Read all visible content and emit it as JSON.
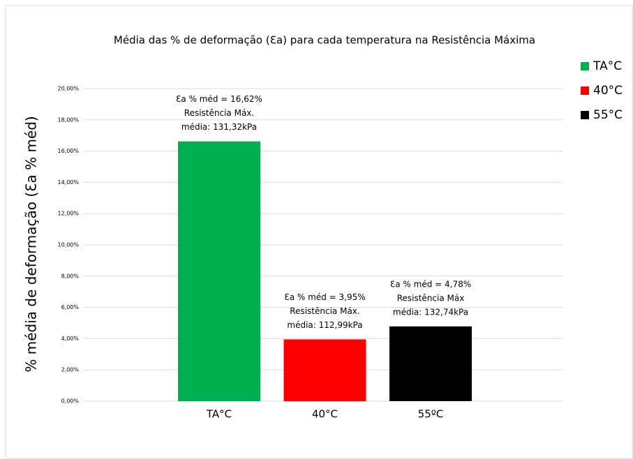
{
  "chart_data": {
    "type": "bar",
    "title": "Média das % de deformação (Ɛa) para cada temperatura na Resistência Máxima",
    "ylabel": "% média de deformação (Ɛa % méd)",
    "categories": [
      "TA°C",
      "40°C",
      "55ºC"
    ],
    "values": [
      16.62,
      3.95,
      4.78
    ],
    "colors": [
      "#00b050",
      "#ff0000",
      "#000000"
    ],
    "annotations": [
      [
        "Ɛa % méd = 16,62%",
        "Resistência Máx.",
        "média: 131,32kPa"
      ],
      [
        "Ɛa % méd = 3,95%",
        "Resistência Máx.",
        "média: 112,99kPa"
      ],
      [
        "Ɛa % méd = 4,78%",
        "Resistência Máx",
        "média: 132,74kPa"
      ]
    ],
    "legend": [
      "TA°C",
      "40°C",
      "55°C"
    ],
    "legend_position": "right",
    "ylim": [
      0,
      20
    ],
    "yticks": [
      {
        "value": 0,
        "label": "0,00%"
      },
      {
        "value": 2,
        "label": "2,00%"
      },
      {
        "value": 4,
        "label": "4,00%"
      },
      {
        "value": 6,
        "label": "6,00%"
      },
      {
        "value": 8,
        "label": "8,00%"
      },
      {
        "value": 10,
        "label": "10,00%"
      },
      {
        "value": 12,
        "label": "12,00%"
      },
      {
        "value": 14,
        "label": "14,00%"
      },
      {
        "value": 16,
        "label": "16,00%"
      },
      {
        "value": 18,
        "label": "18,00%"
      },
      {
        "value": 20,
        "label": "20,00%"
      }
    ],
    "grid": true
  }
}
